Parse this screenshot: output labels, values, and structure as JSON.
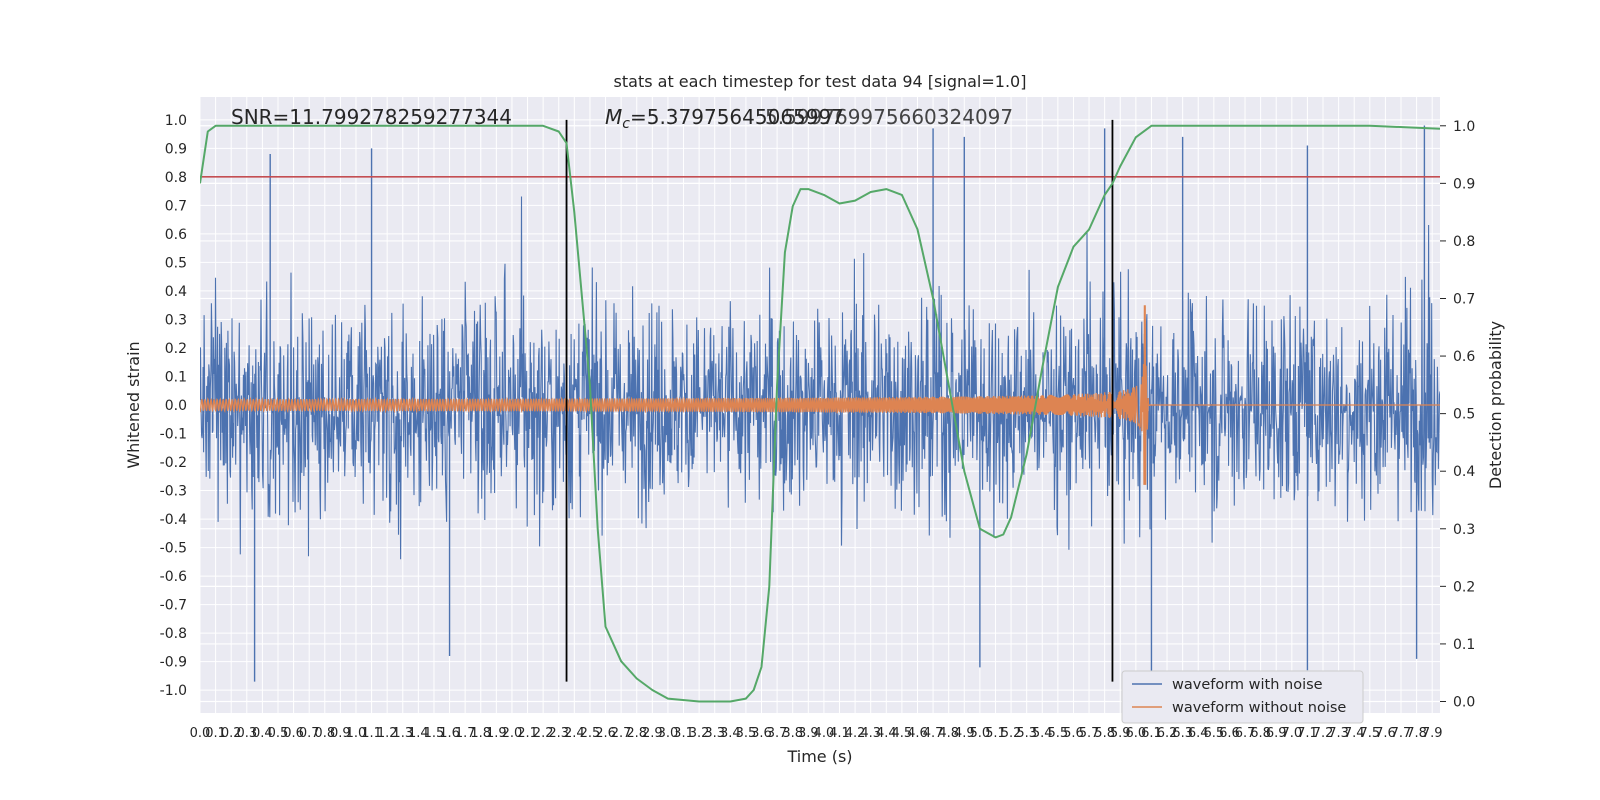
{
  "chart_data": {
    "type": "line",
    "title": "stats at each timestep for test data 94 [signal=1.0]",
    "xlabel": "Time (s)",
    "ylabel_left": "Whitened strain",
    "ylabel_right": "Detection probability",
    "xlim": [
      0.0,
      7.95
    ],
    "ylim_left": [
      -1.08,
      1.08
    ],
    "ylim_right": [
      -0.02,
      1.05
    ],
    "grid": true,
    "legend_position": "lower-right",
    "x_ticks": [
      "0.0",
      "0.1",
      "0.2",
      "0.3",
      "0.4",
      "0.5",
      "0.6",
      "0.7",
      "0.8",
      "0.9",
      "1.0",
      "1.1",
      "1.2",
      "1.3",
      "1.4",
      "1.5",
      "1.6",
      "1.7",
      "1.8",
      "1.9",
      "2.0",
      "2.1",
      "2.2",
      "2.3",
      "2.4",
      "2.5",
      "2.6",
      "2.7",
      "2.8",
      "2.9",
      "3.0",
      "3.1",
      "3.2",
      "3.3",
      "3.4",
      "3.5",
      "3.6",
      "3.7",
      "3.8",
      "3.9",
      "4.0",
      "4.1",
      "4.2",
      "4.3",
      "4.4",
      "4.5",
      "4.6",
      "4.7",
      "4.8",
      "4.9",
      "5.0",
      "5.1",
      "5.2",
      "5.3",
      "5.4",
      "5.5",
      "5.6",
      "5.7",
      "5.8",
      "5.9",
      "6.0",
      "6.1",
      "6.2",
      "6.3",
      "6.4",
      "6.5",
      "6.6",
      "6.7",
      "6.8",
      "6.9",
      "7.0",
      "7.1",
      "7.2",
      "7.3",
      "7.4",
      "7.5",
      "7.6",
      "7.7",
      "7.8",
      "7.9"
    ],
    "y_ticks_left": [
      "-1.0",
      "-0.9",
      "-0.8",
      "-0.7",
      "-0.6",
      "-0.5",
      "-0.4",
      "-0.3",
      "-0.2",
      "-0.1",
      "0.0",
      "0.1",
      "0.2",
      "0.3",
      "0.4",
      "0.5",
      "0.6",
      "0.7",
      "0.8",
      "0.9",
      "1.0"
    ],
    "y_ticks_right": [
      "0.0",
      "0.1",
      "0.2",
      "0.3",
      "0.4",
      "0.5",
      "0.6",
      "0.7",
      "0.8",
      "0.9",
      "1.0"
    ],
    "annotations": {
      "snr": "SNR=11.799278259277344",
      "mc": "=5.37975645065997",
      "mc_symbol": "M",
      "mc_sub": "c",
      "overlap": "5.599769975660324097"
    },
    "threshold": {
      "value": 0.8,
      "axis": "left",
      "color": "#c44e52"
    },
    "event_markers": [
      {
        "x": 2.35,
        "y_range": [
          -0.97,
          1.0
        ]
      },
      {
        "x": 5.85,
        "y_range": [
          -0.97,
          1.0
        ]
      }
    ],
    "series": [
      {
        "name": "waveform with noise",
        "axis": "left",
        "color": "#4c72b0",
        "envelope_typical": 0.45,
        "noise_spikes": [
          {
            "x": 0.35,
            "y": -0.97
          },
          {
            "x": 0.45,
            "y": 0.88
          },
          {
            "x": 1.1,
            "y": 0.9
          },
          {
            "x": 1.6,
            "y": -0.88
          },
          {
            "x": 2.35,
            "y": 0.88
          },
          {
            "x": 4.7,
            "y": 0.97
          },
          {
            "x": 4.9,
            "y": 0.94
          },
          {
            "x": 5.0,
            "y": -0.92
          },
          {
            "x": 5.8,
            "y": 0.97
          },
          {
            "x": 6.1,
            "y": -0.97
          },
          {
            "x": 6.3,
            "y": 0.94
          },
          {
            "x": 7.1,
            "y": 0.91
          },
          {
            "x": 7.1,
            "y": -0.93
          },
          {
            "x": 7.85,
            "y": 0.98
          },
          {
            "x": 7.8,
            "y": -0.89
          }
        ]
      },
      {
        "name": "waveform without noise",
        "axis": "left",
        "color": "#dd8452",
        "merger_time": 6.05,
        "amplitude_start": 0.02,
        "amplitude_peak": 0.35,
        "amplitude_trough": -0.28
      },
      {
        "name": "",
        "axis": "right",
        "color": "#55a868",
        "x": [
          0.0,
          0.05,
          0.1,
          0.3,
          1.0,
          2.0,
          2.2,
          2.3,
          2.35,
          2.4,
          2.5,
          2.55,
          2.6,
          2.7,
          2.8,
          2.9,
          3.0,
          3.2,
          3.4,
          3.5,
          3.55,
          3.6,
          3.65,
          3.7,
          3.75,
          3.8,
          3.85,
          3.9,
          4.0,
          4.1,
          4.2,
          4.3,
          4.4,
          4.5,
          4.6,
          4.7,
          4.8,
          4.9,
          5.0,
          5.1,
          5.15,
          5.2,
          5.3,
          5.4,
          5.5,
          5.6,
          5.7,
          5.8,
          5.85,
          5.9,
          6.0,
          6.1,
          6.2,
          6.5,
          7.0,
          7.5,
          7.95
        ],
        "y": [
          0.9,
          0.99,
          1.0,
          1.0,
          1.0,
          1.0,
          1.0,
          0.99,
          0.97,
          0.85,
          0.55,
          0.3,
          0.13,
          0.07,
          0.04,
          0.02,
          0.005,
          0.0,
          0.0,
          0.005,
          0.02,
          0.06,
          0.2,
          0.55,
          0.78,
          0.86,
          0.89,
          0.89,
          0.88,
          0.865,
          0.87,
          0.885,
          0.89,
          0.88,
          0.82,
          0.7,
          0.55,
          0.4,
          0.3,
          0.285,
          0.29,
          0.32,
          0.43,
          0.58,
          0.72,
          0.79,
          0.82,
          0.88,
          0.9,
          0.93,
          0.98,
          1.0,
          1.0,
          1.0,
          1.0,
          1.0,
          0.995
        ]
      }
    ]
  }
}
